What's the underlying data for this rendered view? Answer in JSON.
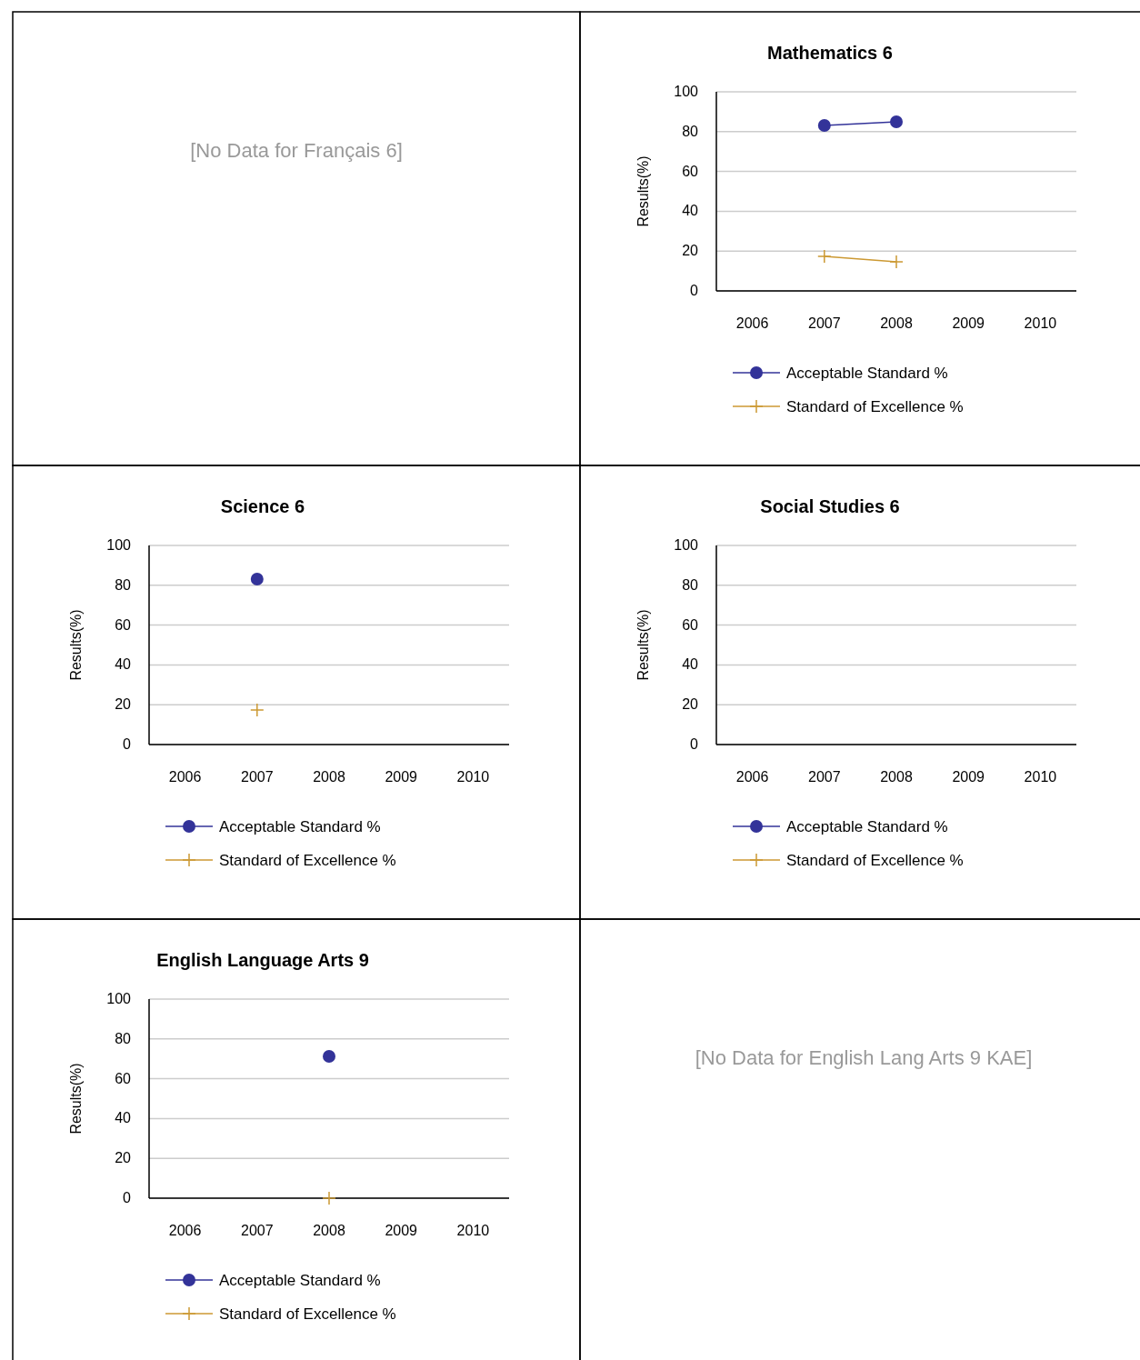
{
  "chart_data": [
    {
      "type": "other",
      "annotations": [
        "[No Data for Français 6]"
      ]
    },
    {
      "type": "line",
      "title": "Mathematics 6",
      "ylabel": "Results(%)",
      "categories": [
        "2006",
        "2007",
        "2008",
        "2009",
        "2010"
      ],
      "ylim": [
        0,
        100
      ],
      "yticks": [
        0,
        20,
        40,
        60,
        80,
        100
      ],
      "grid": "y",
      "legend": "bottom",
      "line_style": "solid",
      "series": [
        {
          "name": "Acceptable Standard %",
          "color": "#333399",
          "marker": "circle",
          "values": [
            null,
            83.1,
            84.9,
            null,
            null
          ]
        },
        {
          "name": "Standard of Excellence %",
          "color": "#cc9933",
          "marker": "cross",
          "values": [
            null,
            17.4,
            14.6,
            null,
            null
          ]
        }
      ]
    },
    {
      "type": "line",
      "title": "Science 6",
      "ylabel": "Results(%)",
      "categories": [
        "2006",
        "2007",
        "2008",
        "2009",
        "2010"
      ],
      "ylim": [
        0,
        100
      ],
      "yticks": [
        0,
        20,
        40,
        60,
        80,
        100
      ],
      "grid": "y",
      "legend": "bottom",
      "line_style": "solid",
      "series": [
        {
          "name": "Acceptable Standard %",
          "color": "#333399",
          "marker": "circle",
          "values": [
            null,
            83.1,
            null,
            null,
            null
          ]
        },
        {
          "name": "Standard of Excellence %",
          "color": "#cc9933",
          "marker": "cross",
          "values": [
            null,
            17.4,
            null,
            null,
            null
          ]
        }
      ]
    },
    {
      "type": "line",
      "title": "Social Studies 6",
      "ylabel": "Results(%)",
      "categories": [
        "2006",
        "2007",
        "2008",
        "2009",
        "2010"
      ],
      "ylim": [
        0,
        100
      ],
      "yticks": [
        0,
        20,
        40,
        60,
        80,
        100
      ],
      "grid": "y",
      "legend": "bottom",
      "line_style": "solid",
      "series": [
        {
          "name": "Acceptable Standard %",
          "color": "#333399",
          "marker": "circle",
          "values": [
            null,
            null,
            null,
            null,
            null
          ]
        },
        {
          "name": "Standard of Excellence %",
          "color": "#cc9933",
          "marker": "cross",
          "values": [
            null,
            null,
            null,
            null,
            null
          ]
        }
      ]
    },
    {
      "type": "line",
      "title": "English Language Arts 9",
      "ylabel": "Results(%)",
      "categories": [
        "2006",
        "2007",
        "2008",
        "2009",
        "2010"
      ],
      "ylim": [
        0,
        100
      ],
      "yticks": [
        0,
        20,
        40,
        60,
        80,
        100
      ],
      "grid": "y",
      "legend": "bottom",
      "line_style": "solid",
      "series": [
        {
          "name": "Acceptable Standard %",
          "color": "#333399",
          "marker": "circle",
          "values": [
            null,
            null,
            71.2,
            null,
            null
          ]
        },
        {
          "name": "Standard of Excellence %",
          "color": "#cc9933",
          "marker": "cross",
          "values": [
            null,
            null,
            0,
            null,
            null
          ]
        }
      ]
    },
    {
      "type": "other",
      "annotations": [
        "[No Data for English Lang Arts 9 KAE]"
      ]
    }
  ]
}
